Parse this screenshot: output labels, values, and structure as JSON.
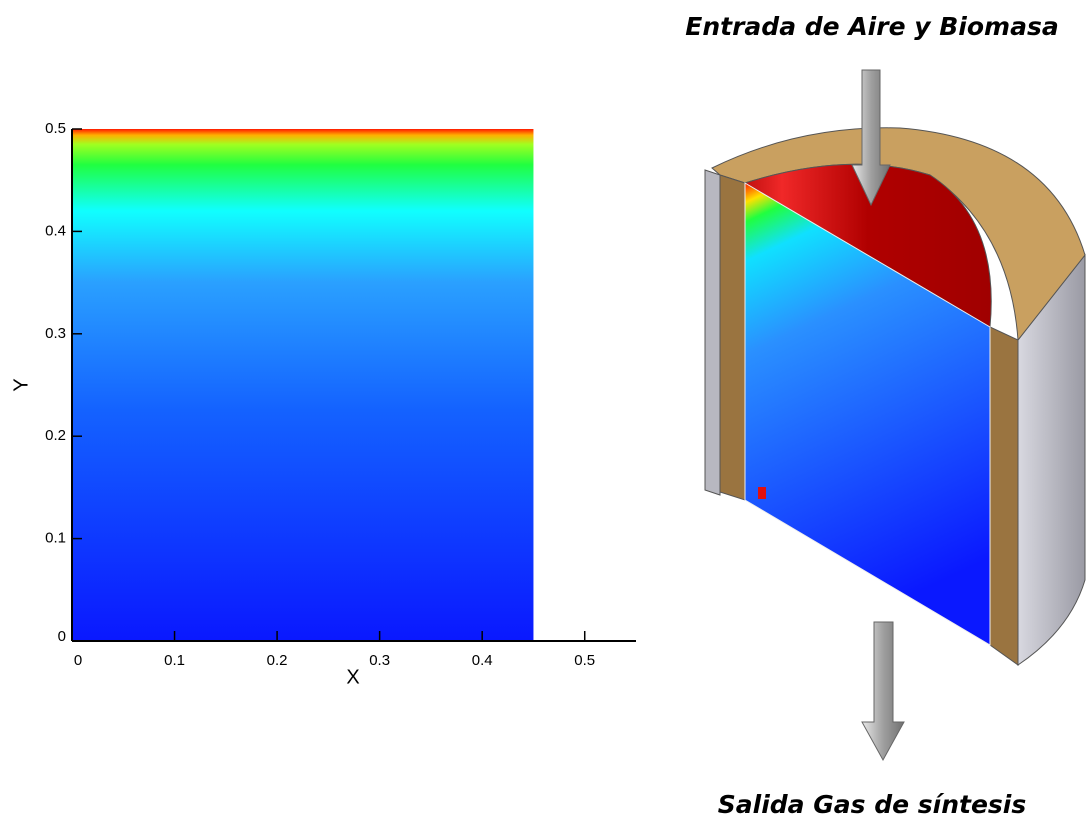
{
  "chart_data": {
    "type": "contour",
    "x_label": "X",
    "y_label": "Y",
    "xlim": [
      0,
      0.55
    ],
    "ylim": [
      0,
      0.5
    ],
    "xticks": [
      0,
      0.1,
      0.2,
      0.3,
      0.4,
      0.5
    ],
    "yticks": [
      0,
      0.1,
      0.2,
      0.3,
      0.4,
      0.5
    ],
    "field_x": [
      0,
      0.45
    ],
    "field_y": [
      0,
      0.5
    ]
  },
  "annotations": {
    "inlet": "Entrada de Aire y Biomasa",
    "outlet": "Salida Gas de síntesis"
  }
}
